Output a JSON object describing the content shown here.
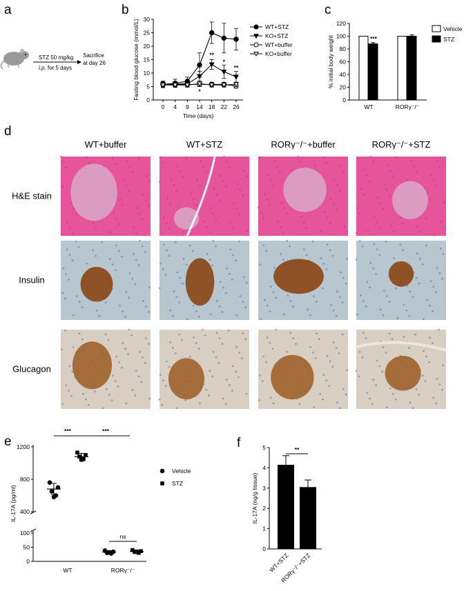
{
  "panels": {
    "a": {
      "letter": "a",
      "dose": "STZ 50 mg/kg",
      "route": "i.p.",
      "route_rest": " for 5 days",
      "end1": "Sacrifice",
      "end2": "at day 26"
    },
    "d": {
      "letter": "d",
      "columns": [
        "WT+buffer",
        "WT+STZ",
        "RORγ⁻/⁻+buffer",
        "RORγ⁻/⁻+STZ"
      ],
      "rows": [
        "H&E stain",
        "Insulin",
        "Glucagon"
      ],
      "stain_colors": {
        "he": "#e6559a",
        "ihc_bg": "#b7c6cf",
        "ihc_stain": "#8b4513",
        "glucagon_bg": "#d8cfc2"
      }
    }
  },
  "chart_data": [
    {
      "panel": "b",
      "type": "line",
      "xlabel": "Time (days)",
      "ylabel": "Fasting blood glucose (mmol/L)",
      "x": [
        0,
        4,
        9,
        14,
        18,
        22,
        26
      ],
      "ylim": [
        0,
        30
      ],
      "yticks": [
        0,
        5,
        10,
        15,
        20,
        25,
        30
      ],
      "series": [
        {
          "name": "WT+STZ",
          "marker": "circle-filled",
          "values": [
            5.8,
            6.2,
            7.0,
            13.0,
            25.0,
            23.0,
            22.6
          ],
          "err": [
            1.2,
            1.5,
            1.5,
            4.5,
            4.0,
            5.5,
            4.0
          ]
        },
        {
          "name": "KO+STZ",
          "marker": "triangle-down-filled",
          "values": [
            5.8,
            5.9,
            6.0,
            8.8,
            13.2,
            10.5,
            8.6
          ],
          "err": [
            1.0,
            1.0,
            1.2,
            1.8,
            1.8,
            2.5,
            2.0
          ]
        },
        {
          "name": "WT+buffer",
          "marker": "circle-open",
          "values": [
            5.8,
            5.8,
            5.8,
            5.8,
            5.8,
            5.8,
            5.2
          ],
          "err": [
            0.8,
            0.8,
            0.8,
            0.8,
            0.8,
            0.8,
            0.8
          ]
        },
        {
          "name": "KO+buffer",
          "marker": "triangle-down-open",
          "values": [
            5.6,
            5.6,
            5.6,
            6.0,
            5.6,
            5.6,
            5.8
          ],
          "err": [
            0.8,
            0.8,
            0.8,
            1.0,
            0.8,
            0.8,
            0.8
          ]
        }
      ],
      "annotations": [
        {
          "x": 14,
          "text": "*",
          "y": 2.5
        },
        {
          "x": 18,
          "text": "**",
          "y": 16.0
        },
        {
          "x": 22,
          "text": "*",
          "y": 13.5
        },
        {
          "x": 26,
          "text": "**",
          "y": 11.3
        }
      ],
      "letter": "b"
    },
    {
      "panel": "c",
      "type": "bar",
      "ylabel": "% initial body weight",
      "categories": [
        "WT",
        "RORγ⁻/⁻"
      ],
      "ylim": [
        0,
        120
      ],
      "yticks": [
        0,
        20,
        40,
        60,
        80,
        100,
        120
      ],
      "series": [
        {
          "name": "Vehicle",
          "values": [
            100,
            100
          ],
          "fill": "#ffffff"
        },
        {
          "name": "STZ",
          "values": [
            88,
            100
          ],
          "err": [
            2,
            2
          ],
          "fill": "#000000"
        }
      ],
      "annotation": "***",
      "letter": "c"
    },
    {
      "panel": "e",
      "type": "scatter",
      "ylabel": "IL-17A (pg/ml)",
      "categories": [
        "WT",
        "RORγ⁻/⁻"
      ],
      "yticks_upper": [
        400,
        800,
        1200
      ],
      "yticks_lower": [
        0,
        50,
        100
      ],
      "series": [
        {
          "name": "Vehicle",
          "marker": "circle",
          "group": "WT",
          "values": [
            760,
            700,
            650,
            600,
            580
          ],
          "mean": 680,
          "sd": 70
        },
        {
          "name": "STZ",
          "marker": "square",
          "group": "WT",
          "values": [
            1130,
            1100,
            1080,
            1050,
            1040
          ],
          "mean": 1080,
          "sd": 40
        },
        {
          "name": "Vehicle",
          "marker": "circle",
          "group": "RORγ⁻/⁻",
          "values": [
            38,
            34,
            30,
            28,
            32
          ],
          "mean": 33,
          "sd": 5
        },
        {
          "name": "STZ",
          "marker": "square",
          "group": "RORγ⁻/⁻",
          "values": [
            40,
            36,
            33,
            30,
            34
          ],
          "mean": 35,
          "sd": 5
        }
      ],
      "comparisons": [
        {
          "label": "***"
        },
        {
          "label": "***"
        },
        {
          "label": "ns"
        }
      ],
      "letter": "e"
    },
    {
      "panel": "f",
      "type": "bar",
      "ylabel": "IL-17A (ng/g tissue)",
      "categories": [
        "WT+STZ",
        "RORγ⁻/⁻+STZ"
      ],
      "values": [
        4.15,
        3.05
      ],
      "err": [
        0.45,
        0.35
      ],
      "ylim": [
        0,
        5
      ],
      "yticks": [
        0,
        1,
        2,
        3,
        4,
        5
      ],
      "annotation": "**",
      "letter": "f"
    }
  ]
}
